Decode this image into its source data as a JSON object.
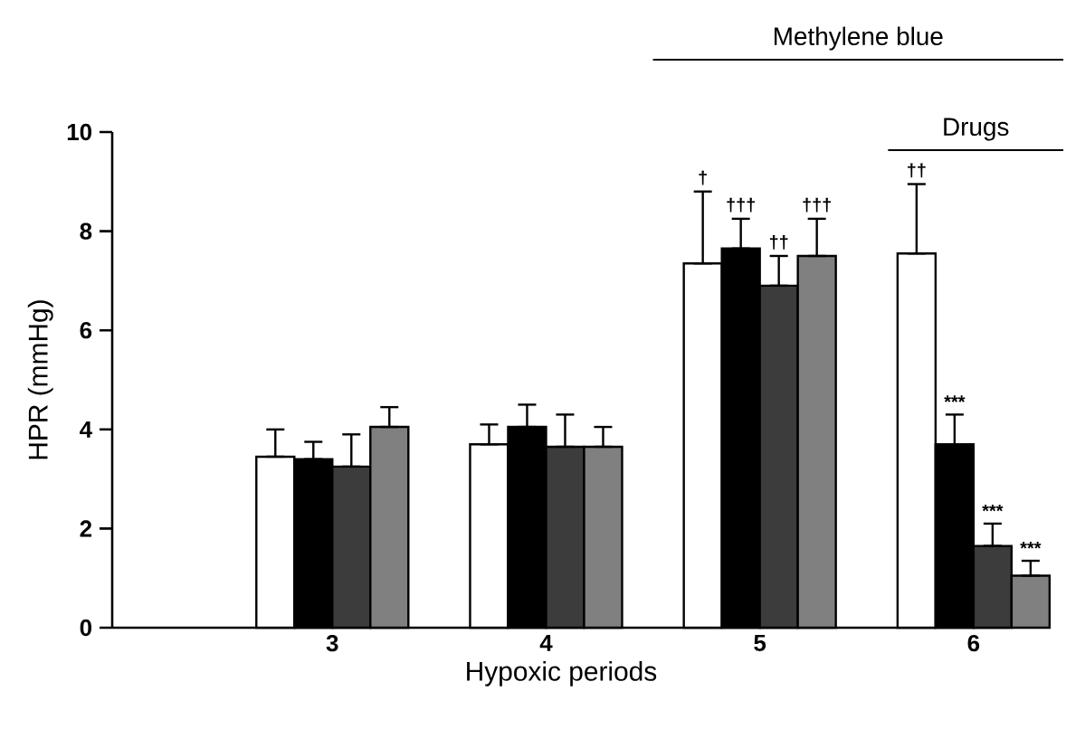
{
  "chart_data": {
    "type": "bar",
    "xlabel": "Hypoxic periods",
    "ylabel": "HPR (mmHg)",
    "categories": [
      "3",
      "4",
      "5",
      "6"
    ],
    "series": [
      {
        "color": "#ffffff",
        "values": [
          3.45,
          3.7,
          7.35,
          7.55
        ],
        "errors": [
          [
            3.45,
            4.0
          ],
          [
            3.7,
            4.1
          ],
          [
            7.35,
            8.8
          ],
          [
            7.55,
            8.95
          ]
        ]
      },
      {
        "color": "#000000",
        "values": [
          3.4,
          4.05,
          7.65,
          3.7
        ],
        "errors": [
          [
            3.4,
            3.75
          ],
          [
            4.05,
            4.5
          ],
          [
            7.65,
            8.25
          ],
          [
            3.7,
            4.3
          ]
        ]
      },
      {
        "color": "#3c3c3c",
        "values": [
          3.25,
          3.65,
          6.9,
          1.65
        ],
        "errors": [
          [
            3.25,
            3.9
          ],
          [
            3.65,
            4.3
          ],
          [
            6.9,
            7.5
          ],
          [
            1.65,
            2.1
          ]
        ]
      },
      {
        "color": "#808080",
        "values": [
          4.05,
          3.65,
          7.5,
          1.05
        ],
        "errors": [
          [
            4.05,
            4.45
          ],
          [
            3.65,
            4.05
          ],
          [
            7.5,
            8.25
          ],
          [
            1.05,
            1.35
          ]
        ]
      }
    ],
    "ylim": [
      0,
      10
    ],
    "yticks": [
      0,
      2,
      4,
      6,
      8,
      10
    ],
    "grid": false,
    "annotations": [
      "Methylene blue",
      "Drugs",
      "†",
      "†††",
      "††",
      "†††",
      "††",
      "***",
      "***",
      "***"
    ]
  }
}
